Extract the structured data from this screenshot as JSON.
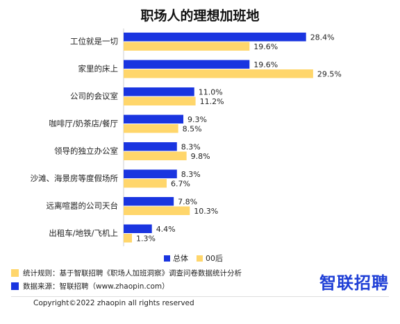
{
  "chart_data": {
    "type": "bar",
    "orientation": "horizontal",
    "title": "职场人的理想加班地",
    "categories": [
      "工位就是一切",
      "家里的床上",
      "公司的会议室",
      "咖啡厅/奶茶店/餐厅",
      "领导的独立办公室",
      "沙滩、海景房等度假场所",
      "远离喧嚣的公司天台",
      "出租车/地铁/飞机上"
    ],
    "series": [
      {
        "name": "总体",
        "color": "#1a35e0",
        "values": [
          28.4,
          19.6,
          11.0,
          9.3,
          8.3,
          8.3,
          7.8,
          4.4
        ]
      },
      {
        "name": "00后",
        "color": "#ffd66b",
        "values": [
          19.6,
          29.5,
          11.2,
          8.5,
          9.8,
          6.7,
          10.3,
          1.3
        ]
      }
    ],
    "value_suffix": "%",
    "xlim": [
      0,
      30
    ],
    "legend_position": "bottom",
    "grid": false
  },
  "notes": [
    {
      "label": "统计规则：基于智联招聘《职场人加班洞察》调查问卷数据统计分析",
      "color": "#ffd66b"
    },
    {
      "label": "数据来源：智联招聘（www.zhaopin.com）",
      "color": "#1a35e0"
    }
  ],
  "logo": "智联招聘",
  "copyright": "Copyright©2022 zhaopin all rights reserved"
}
